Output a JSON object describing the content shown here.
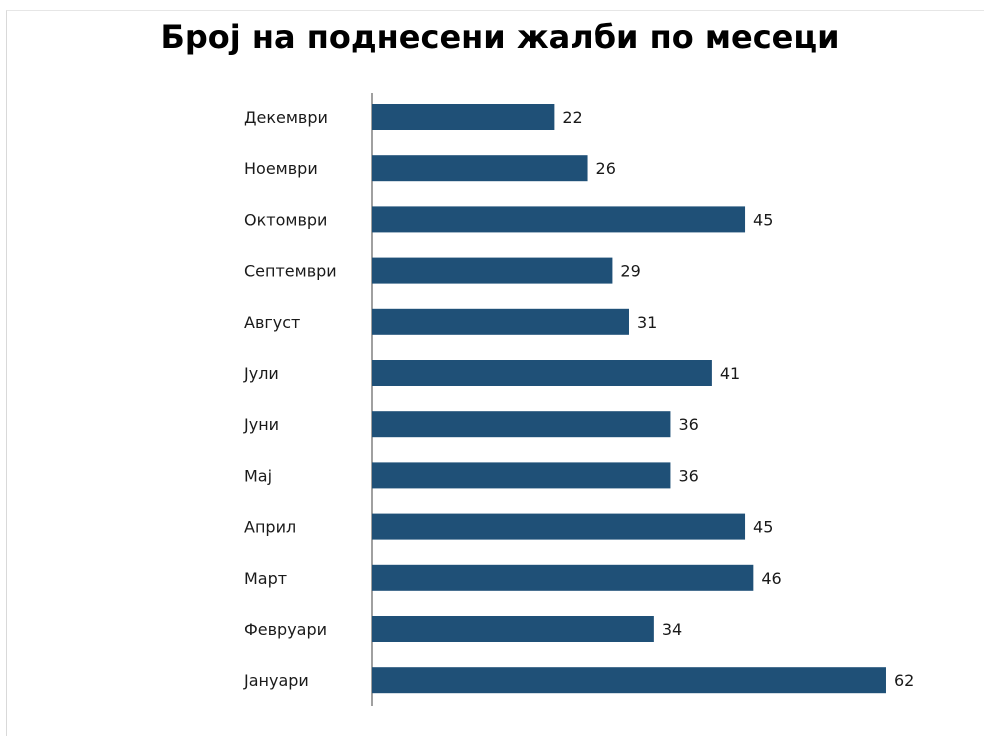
{
  "chart_data": {
    "type": "bar",
    "orientation": "horizontal",
    "title": "Број на поднесени жалби по месеци",
    "xlabel": "",
    "ylabel": "",
    "categories": [
      "Декември",
      "Ноември",
      "Октомври",
      "Септември",
      "Август",
      "Јули",
      "Јуни",
      "Мај",
      "Април",
      "Март",
      "Февруари",
      "Јануари"
    ],
    "values": [
      22,
      26,
      45,
      29,
      31,
      41,
      36,
      36,
      45,
      46,
      34,
      62
    ],
    "data_labels": [
      "22",
      "26",
      "45",
      "29",
      "31",
      "41",
      "36",
      "36",
      "45",
      "46",
      "34",
      "62"
    ],
    "xlim": [
      0,
      62
    ],
    "grid": false,
    "legend": "none",
    "bar_color": "#1f5077",
    "axis_color": "#808080"
  }
}
